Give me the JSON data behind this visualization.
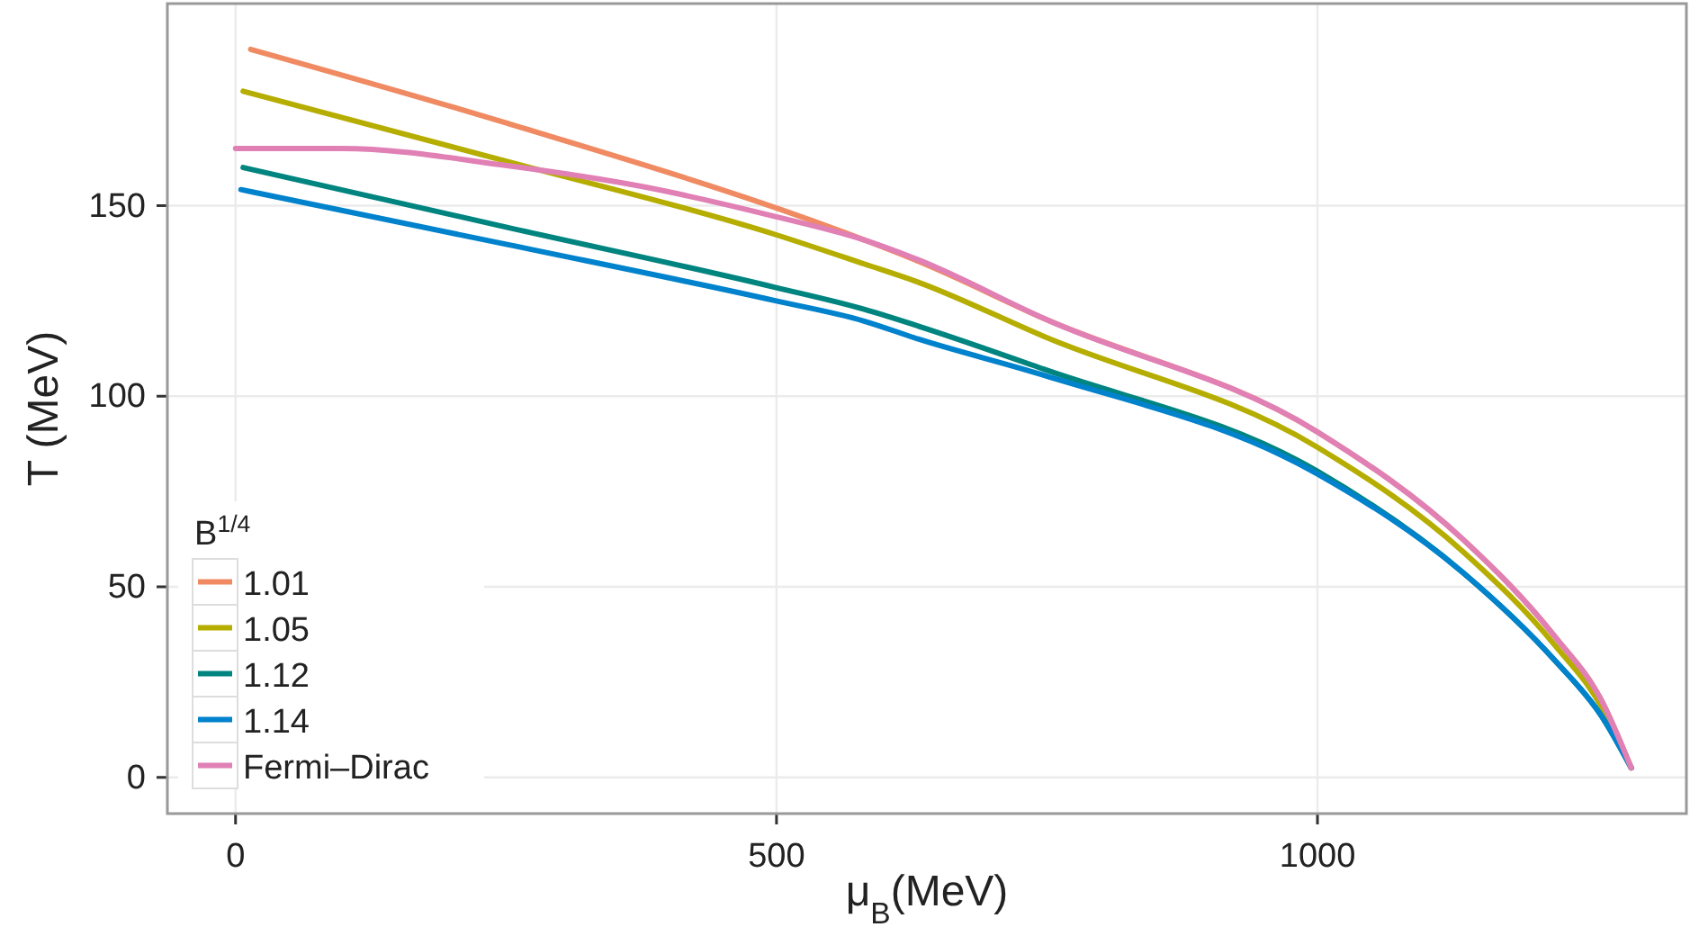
{
  "chart_data": {
    "type": "line",
    "xlabel": "μ$_{B}$(MeV)",
    "ylabel": "T (MeV)",
    "legend_title": "B$^{1/4}$",
    "xlim": [
      -63,
      1341
    ],
    "ylim": [
      -9.5,
      203
    ],
    "xticks": [
      0,
      500,
      1000
    ],
    "yticks": [
      0,
      50,
      100,
      150
    ],
    "grid": true,
    "legend": "bottom left",
    "line_style": "solid",
    "series": [
      {
        "name": "1.01",
        "color": "#f08a62",
        "x": [
          14,
          251,
          581,
          631,
          747,
          1000,
          1135,
          1219,
          1263,
          1290
        ],
        "values": [
          191,
          171.6,
          141,
          135.4,
          120.4,
          90.6,
          62.3,
          37.1,
          19.9,
          2.5
        ]
      },
      {
        "name": "1.05",
        "color": "#b5ad00",
        "x": [
          7,
          251,
          498,
          581,
          631,
          747,
          1000,
          1135,
          1219,
          1263,
          1290
        ],
        "values": [
          180,
          161.6,
          142.5,
          134.7,
          129.9,
          115.7,
          86.6,
          59.1,
          34.8,
          18.3,
          2.5
        ]
      },
      {
        "name": "1.12",
        "color": "#00847f",
        "x": [
          7,
          251,
          498,
          581,
          631,
          747,
          1000,
          1135,
          1219,
          1263,
          1290
        ],
        "values": [
          160,
          144.3,
          128.6,
          122.8,
          118.4,
          107.1,
          80.3,
          53.6,
          30.8,
          15.9,
          2.5
        ]
      },
      {
        "name": "1.14",
        "color": "#0082cc",
        "x": [
          5,
          251,
          498,
          581,
          631,
          747,
          1000,
          1135,
          1219,
          1263,
          1290
        ],
        "values": [
          154.2,
          139.8,
          125.1,
          119.7,
          115,
          105.5,
          79.6,
          53.6,
          30.8,
          15.9,
          2.5
        ]
      },
      {
        "name": "Fermi–Dirac",
        "color": "#e080b5",
        "x": [
          0,
          98,
          251,
          376,
          498,
          581,
          631,
          747,
          1000,
          1135,
          1219,
          1263,
          1290
        ],
        "values": [
          165,
          165,
          160.5,
          155,
          147.2,
          141,
          135.8,
          120.4,
          90.6,
          62.3,
          37.1,
          19.9,
          2.5
        ]
      }
    ]
  }
}
